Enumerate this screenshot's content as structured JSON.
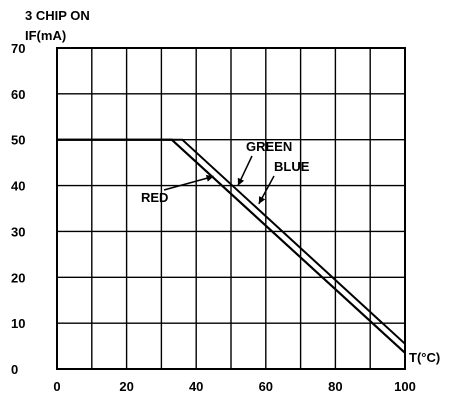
{
  "chart_data": {
    "type": "line",
    "title": "3 CHIP ON",
    "ylabel": "IF(mA)",
    "xlabel": "T(°C)",
    "xlim": [
      0,
      100
    ],
    "ylim": [
      0,
      70
    ],
    "x_ticks": [
      "0",
      "20",
      "40",
      "60",
      "80",
      "100"
    ],
    "y_ticks": [
      "0",
      "10",
      "20",
      "30",
      "40",
      "50",
      "60",
      "70"
    ],
    "grid": true,
    "series": [
      {
        "name": "RED",
        "x": [
          0,
          33,
          100
        ],
        "y": [
          50,
          50,
          3.5
        ],
        "color": "#000000"
      },
      {
        "name": "GREEN",
        "x": [
          0,
          33,
          100
        ],
        "y": [
          50,
          50,
          3.5
        ],
        "color": "#000000"
      },
      {
        "name": "BLUE",
        "x": [
          0,
          36,
          100
        ],
        "y": [
          50,
          50,
          5.5
        ],
        "color": "#000000"
      }
    ],
    "annotations": [
      {
        "text": "RED",
        "points_to": {
          "x": 45,
          "y": 42
        }
      },
      {
        "text": "GREEN",
        "points_to": {
          "x": 52,
          "y": 40
        }
      },
      {
        "text": "BLUE",
        "points_to": {
          "x": 58,
          "y": 36
        }
      }
    ]
  }
}
